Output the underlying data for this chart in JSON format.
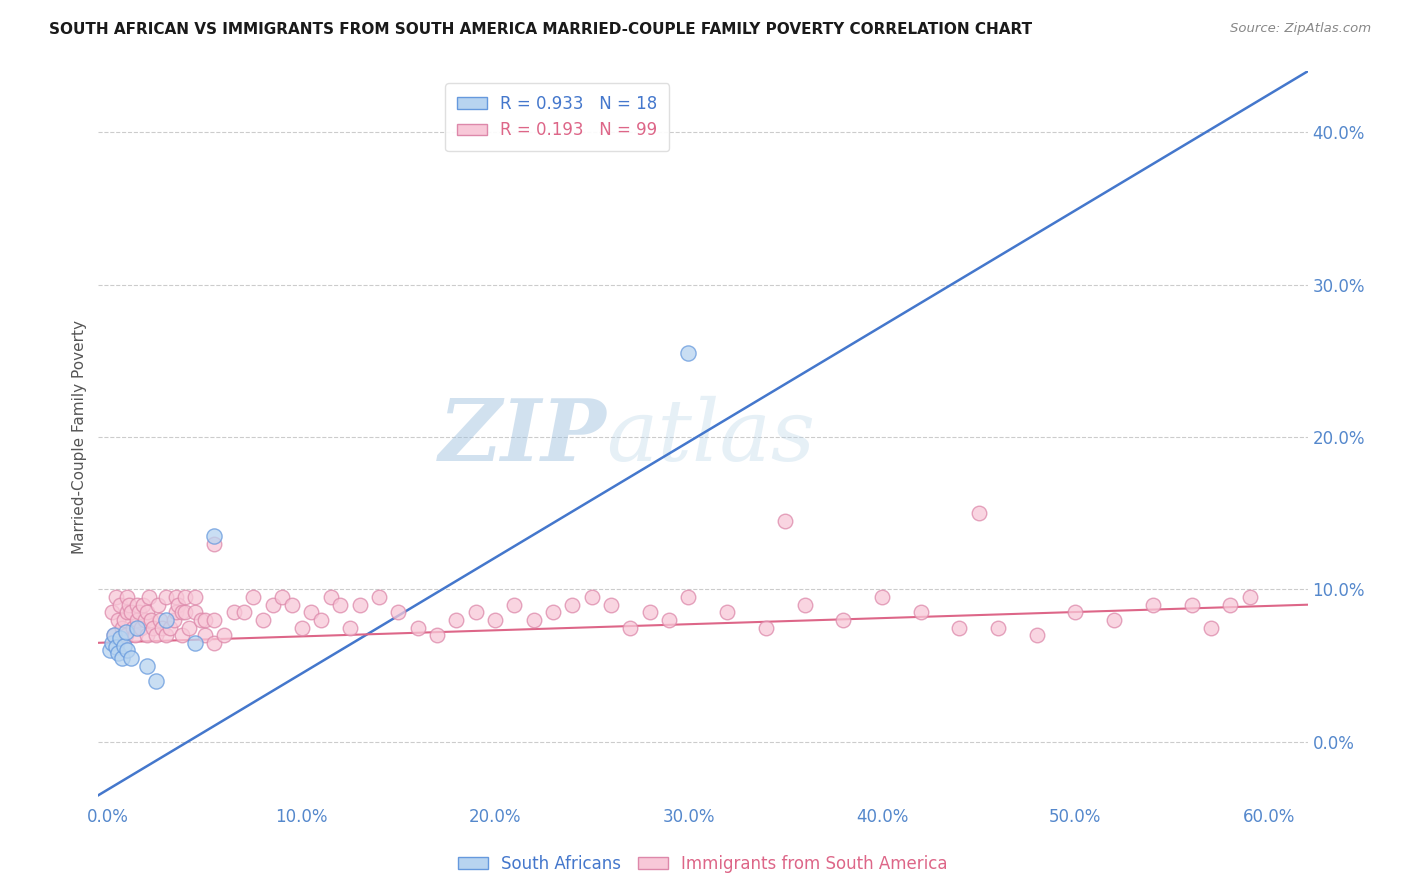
{
  "title": "SOUTH AFRICAN VS IMMIGRANTS FROM SOUTH AMERICA MARRIED-COUPLE FAMILY POVERTY CORRELATION CHART",
  "source": "Source: ZipAtlas.com",
  "xlabel_ticks": [
    0,
    10,
    20,
    30,
    40,
    50,
    60
  ],
  "ylabel_ticks": [
    0,
    10,
    20,
    30,
    40
  ],
  "xlim": [
    -0.5,
    62
  ],
  "ylim": [
    -4,
    44
  ],
  "ylabel": "Married-Couple Family Poverty",
  "watermark_zip": "ZIP",
  "watermark_atlas": "atlas",
  "blue_label": "South Africans",
  "pink_label": "Immigrants from South America",
  "blue_R": "0.933",
  "blue_N": "18",
  "pink_R": "0.193",
  "pink_N": "99",
  "blue_color": "#b8d4f0",
  "blue_edge_color": "#6699dd",
  "blue_line_color": "#4477cc",
  "pink_color": "#f8c8d8",
  "pink_edge_color": "#dd88aa",
  "pink_line_color": "#dd6688",
  "tick_color": "#5588cc",
  "blue_dots_x": [
    0.1,
    0.2,
    0.3,
    0.4,
    0.5,
    0.6,
    0.7,
    0.8,
    0.9,
    1.0,
    1.2,
    1.5,
    2.0,
    2.5,
    3.0,
    4.5,
    5.5,
    30.0
  ],
  "blue_dots_y": [
    6.0,
    6.5,
    7.0,
    6.2,
    5.8,
    6.8,
    5.5,
    6.3,
    7.2,
    6.0,
    5.5,
    7.5,
    5.0,
    4.0,
    8.0,
    6.5,
    13.5,
    25.5
  ],
  "blue_line_x0": -0.5,
  "blue_line_x1": 62,
  "blue_line_y0": -3.5,
  "blue_line_y1": 44.0,
  "pink_line_x0": -0.5,
  "pink_line_x1": 62,
  "pink_line_y0": 6.5,
  "pink_line_y1": 9.0,
  "pink_dots_x": [
    0.2,
    0.3,
    0.4,
    0.5,
    0.6,
    0.7,
    0.8,
    0.9,
    1.0,
    1.0,
    1.1,
    1.2,
    1.3,
    1.4,
    1.5,
    1.5,
    1.6,
    1.7,
    1.8,
    1.9,
    2.0,
    2.0,
    2.1,
    2.2,
    2.3,
    2.5,
    2.6,
    2.7,
    2.8,
    3.0,
    3.0,
    3.2,
    3.4,
    3.5,
    3.5,
    3.6,
    3.8,
    3.8,
    4.0,
    4.0,
    4.2,
    4.5,
    4.5,
    4.8,
    5.0,
    5.0,
    5.5,
    5.5,
    6.0,
    6.5,
    7.0,
    7.5,
    8.0,
    8.5,
    9.0,
    9.5,
    10.0,
    10.5,
    11.0,
    11.5,
    12.0,
    12.5,
    13.0,
    14.0,
    15.0,
    16.0,
    17.0,
    18.0,
    19.0,
    20.0,
    21.0,
    22.0,
    23.0,
    24.0,
    25.0,
    26.0,
    27.0,
    28.0,
    29.0,
    30.0,
    32.0,
    34.0,
    36.0,
    38.0,
    40.0,
    42.0,
    44.0,
    46.0,
    48.0,
    50.0,
    52.0,
    54.0,
    56.0,
    57.0,
    58.0,
    59.0,
    5.5,
    35.0,
    45.0
  ],
  "pink_dots_y": [
    8.5,
    7.0,
    9.5,
    8.0,
    9.0,
    7.5,
    8.0,
    7.0,
    8.5,
    9.5,
    9.0,
    8.5,
    7.5,
    7.0,
    8.0,
    9.0,
    8.5,
    7.5,
    9.0,
    8.0,
    7.0,
    8.5,
    9.5,
    8.0,
    7.5,
    7.0,
    9.0,
    8.0,
    7.5,
    7.0,
    9.5,
    7.5,
    8.0,
    8.5,
    9.5,
    9.0,
    8.5,
    7.0,
    8.5,
    9.5,
    7.5,
    8.5,
    9.5,
    8.0,
    7.0,
    8.0,
    8.0,
    6.5,
    7.0,
    8.5,
    8.5,
    9.5,
    8.0,
    9.0,
    9.5,
    9.0,
    7.5,
    8.5,
    8.0,
    9.5,
    9.0,
    7.5,
    9.0,
    9.5,
    8.5,
    7.5,
    7.0,
    8.0,
    8.5,
    8.0,
    9.0,
    8.0,
    8.5,
    9.0,
    9.5,
    9.0,
    7.5,
    8.5,
    8.0,
    9.5,
    8.5,
    7.5,
    9.0,
    8.0,
    9.5,
    8.5,
    7.5,
    7.5,
    7.0,
    8.5,
    8.0,
    9.0,
    9.0,
    7.5,
    9.0,
    9.5,
    13.0,
    14.5,
    15.0
  ]
}
